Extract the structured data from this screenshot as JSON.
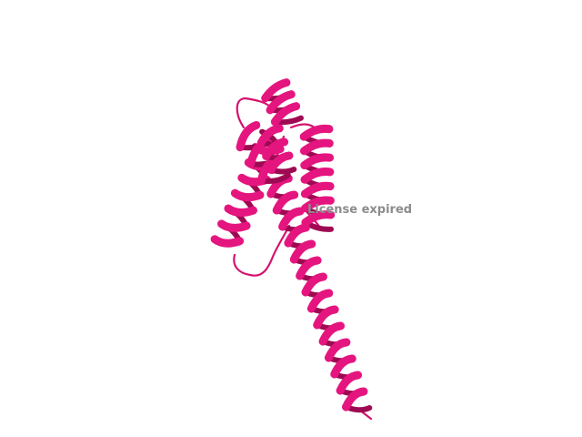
{
  "watermark": "License expired"
}
